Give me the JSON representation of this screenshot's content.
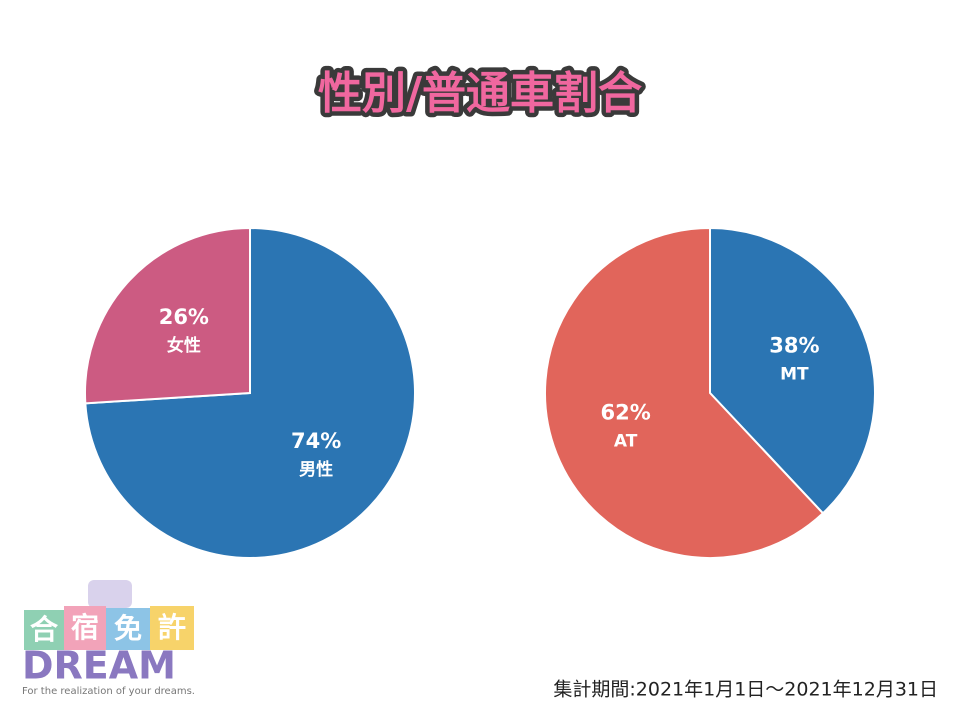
{
  "title": "性別/普通車割合",
  "chart_data": [
    {
      "type": "pie",
      "categories": [
        "男性",
        "女性"
      ],
      "values": [
        74,
        26
      ],
      "value_labels": [
        "74%",
        "26%"
      ],
      "colors": [
        "#2b75b3",
        "#cc5b82"
      ]
    },
    {
      "type": "pie",
      "categories": [
        "MT",
        "AT"
      ],
      "values": [
        38,
        62
      ],
      "value_labels": [
        "38%",
        "62%"
      ],
      "colors": [
        "#2b75b3",
        "#e1655b"
      ]
    }
  ],
  "footer": "集計期間:2021年1月1日～2021年12月31日",
  "logo": {
    "kanji": [
      "合",
      "宿",
      "免",
      "許"
    ],
    "name": "DREAM",
    "tagline": "For the realization of your dreams."
  }
}
